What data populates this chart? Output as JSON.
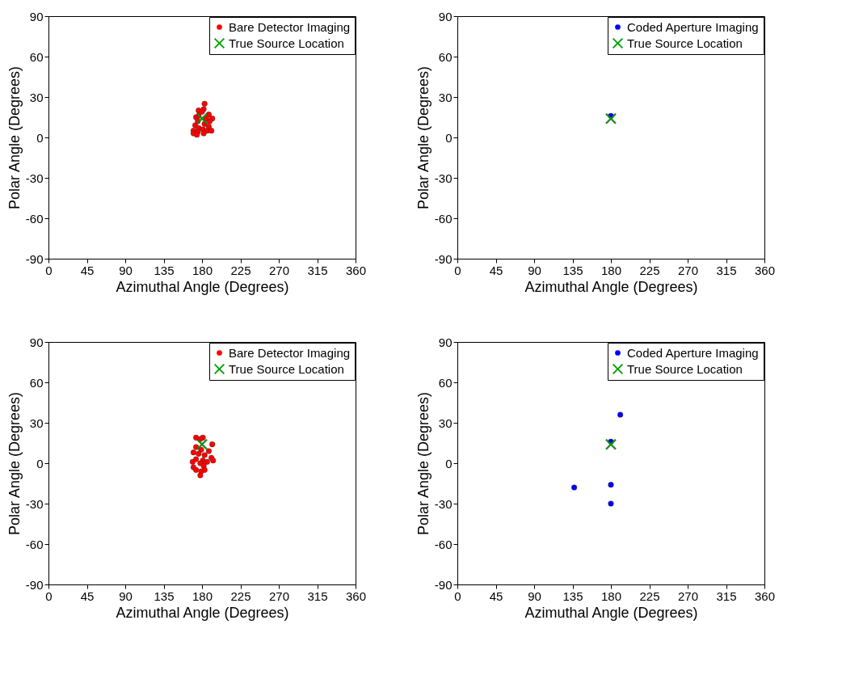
{
  "chart_data": [
    {
      "type": "scatter",
      "xlabel": "Azimuthal Angle (Degrees)",
      "ylabel": "Polar Angle (Degrees)",
      "xlim": [
        0,
        360
      ],
      "xticks": [
        0,
        45,
        90,
        135,
        180,
        225,
        270,
        315,
        360
      ],
      "ylim": [
        -90,
        90
      ],
      "yticks": [
        -90,
        -60,
        -30,
        0,
        30,
        60,
        90
      ],
      "legend": "top right",
      "series": [
        {
          "name": "Bare Detector Imaging",
          "color": "#ff0000",
          "marker": "circle",
          "x": [
            183,
            182,
            176,
            180,
            188,
            173,
            176,
            185,
            192,
            175,
            189,
            183,
            172,
            176,
            188,
            170,
            181,
            186,
            175,
            191,
            170,
            182,
            174
          ],
          "values": [
            25,
            21,
            20,
            19,
            17,
            15,
            16,
            14,
            14,
            12,
            12,
            10,
            9,
            7,
            8,
            5,
            6,
            5,
            4,
            5,
            3,
            3,
            2
          ]
        },
        {
          "name": "True Source Location",
          "color": "#00a000",
          "marker": "cross",
          "x": [
            180
          ],
          "values": [
            14
          ]
        }
      ]
    },
    {
      "type": "scatter",
      "xlabel": "Azimuthal Angle (Degrees)",
      "ylabel": "Polar Angle (Degrees)",
      "xlim": [
        0,
        360
      ],
      "xticks": [
        0,
        45,
        90,
        135,
        180,
        225,
        270,
        315,
        360
      ],
      "ylim": [
        -90,
        90
      ],
      "yticks": [
        -90,
        -60,
        -30,
        0,
        30,
        60,
        90
      ],
      "legend": "top right",
      "series": [
        {
          "name": "Coded Aperture Imaging",
          "color": "#0000ff",
          "marker": "circle",
          "x": [
            180
          ],
          "values": [
            16
          ]
        },
        {
          "name": "True Source Location",
          "color": "#00a000",
          "marker": "cross",
          "x": [
            180
          ],
          "values": [
            14
          ]
        }
      ]
    },
    {
      "type": "scatter",
      "xlabel": "Azimuthal Angle (Degrees)",
      "ylabel": "Polar Angle (Degrees)",
      "xlim": [
        0,
        360
      ],
      "xticks": [
        0,
        45,
        90,
        135,
        180,
        225,
        270,
        315,
        360
      ],
      "ylim": [
        -90,
        90
      ],
      "yticks": [
        -90,
        -60,
        -30,
        0,
        30,
        60,
        90
      ],
      "legend": "top right",
      "series": [
        {
          "name": "Bare Detector Imaging",
          "color": "#ff0000",
          "marker": "circle",
          "x": [
            173,
            181,
            178,
            192,
            173,
            170,
            179,
            188,
            176,
            183,
            191,
            173,
            181,
            193,
            169,
            178,
            186,
            170,
            182,
            183,
            173,
            179,
            178
          ],
          "values": [
            19,
            19,
            18,
            14,
            12,
            8,
            10,
            9,
            7,
            6,
            4,
            3,
            2,
            2,
            1,
            0,
            1,
            -3,
            -2,
            -5,
            -5,
            -6,
            -9
          ]
        },
        {
          "name": "True Source Location",
          "color": "#00a000",
          "marker": "cross",
          "x": [
            180
          ],
          "values": [
            14
          ]
        }
      ]
    },
    {
      "type": "scatter",
      "xlabel": "Azimuthal Angle (Degrees)",
      "ylabel": "Polar Angle (Degrees)",
      "xlim": [
        0,
        360
      ],
      "xticks": [
        0,
        45,
        90,
        135,
        180,
        225,
        270,
        315,
        360
      ],
      "ylim": [
        -90,
        90
      ],
      "yticks": [
        -90,
        -60,
        -30,
        0,
        30,
        60,
        90
      ],
      "legend": "top right",
      "series": [
        {
          "name": "Coded Aperture Imaging",
          "color": "#0000ff",
          "marker": "circle",
          "x": [
            191,
            180,
            137,
            180,
            180
          ],
          "values": [
            36,
            16,
            -18,
            -16,
            -30
          ]
        },
        {
          "name": "True Source Location",
          "color": "#00a000",
          "marker": "cross",
          "x": [
            180
          ],
          "values": [
            14
          ]
        }
      ]
    }
  ]
}
